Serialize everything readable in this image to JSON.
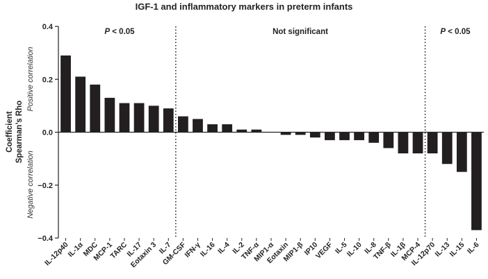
{
  "chart_data": {
    "type": "bar",
    "title": "IGF-1 and inflammatory markers in preterm infants",
    "ylabel_line1": "Coefficient",
    "ylabel_line2": "Spearman’s Rho",
    "positive_label": "Positive correlation",
    "negative_label": "Negative correlation",
    "ylim": [
      -0.4,
      0.4
    ],
    "yticks": [
      "0.4",
      "0.2",
      "0.0",
      "−0.2",
      "−0.4"
    ],
    "ytick_values": [
      0.4,
      0.2,
      0.0,
      -0.2,
      -0.4
    ],
    "categories": [
      "IL-12p40",
      "IL-1α",
      "MDC",
      "MCP-1",
      "TARC",
      "IL-17",
      "Eotaxin 3",
      "IL-7",
      "GM-CSF",
      "IFN-γ",
      "IL-16",
      "IL-4",
      "IL-2",
      "TNF-α",
      "MIP1-α",
      "Eotaxin",
      "MIP1-β",
      "IP10",
      "VEGF",
      "IL-5",
      "IL-10",
      "IL-8",
      "TNF-β",
      "IL-1β",
      "MCP-4",
      "IL-12p70",
      "IL-13",
      "IL-15",
      "IL-6"
    ],
    "values": [
      0.29,
      0.21,
      0.18,
      0.13,
      0.11,
      0.11,
      0.1,
      0.09,
      0.06,
      0.05,
      0.03,
      0.03,
      0.01,
      0.01,
      0.0,
      -0.01,
      -0.01,
      -0.02,
      -0.03,
      -0.03,
      -0.03,
      -0.04,
      -0.06,
      -0.08,
      -0.08,
      -0.08,
      -0.12,
      -0.15,
      -0.37
    ],
    "separators_after_index": [
      7,
      24
    ],
    "regions": [
      {
        "p": "P",
        "text": " < 0.05"
      },
      {
        "text": "Not significant"
      },
      {
        "p": "P",
        "text": " < 0.05"
      }
    ],
    "bar_color": "#231f20"
  }
}
